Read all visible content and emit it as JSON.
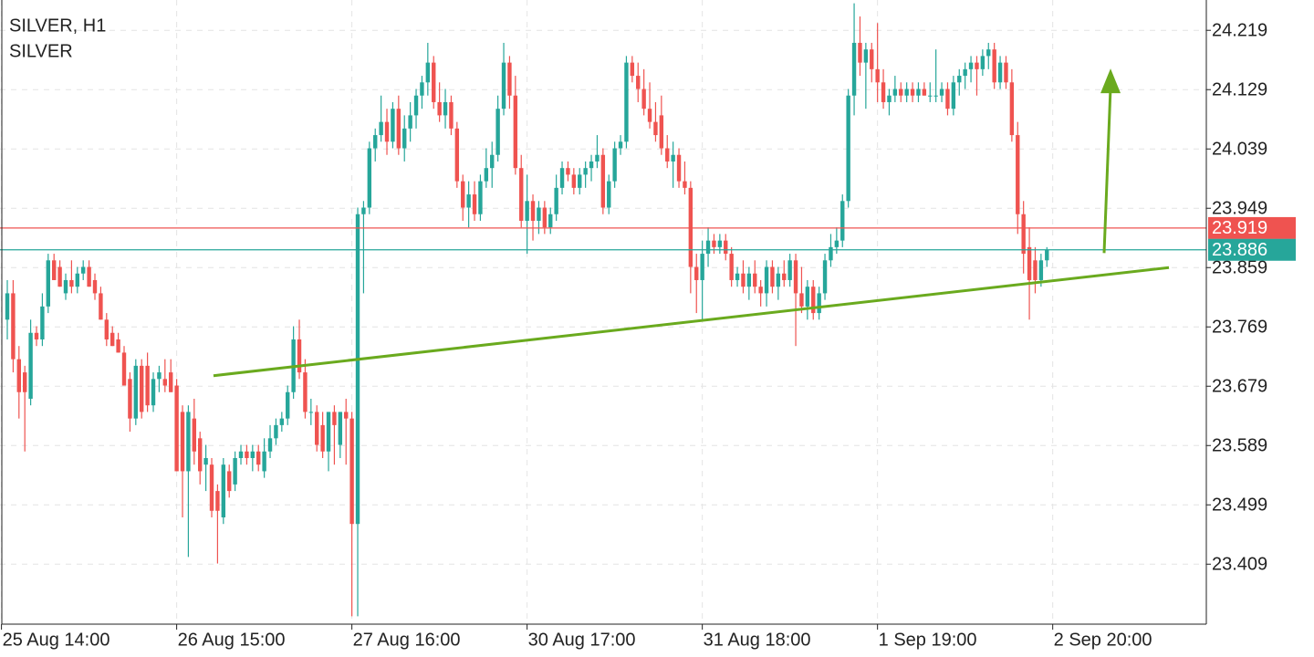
{
  "chart_data": {
    "type": "candlestick",
    "title": "SILVER, H1",
    "subtitle": "SILVER",
    "up_color": "#26a69a",
    "down_color": "#ef5350",
    "grid": true,
    "ylim": [
      23.318,
      24.265
    ],
    "yticks": [
      23.409,
      23.499,
      23.589,
      23.679,
      23.769,
      23.859,
      23.949,
      24.039,
      24.129,
      24.219
    ],
    "xlim": [
      -1.25,
      205.3
    ],
    "xticks": [
      {
        "value": -1,
        "label": "25 Aug 14:00"
      },
      {
        "value": 29,
        "label": "26 Aug 15:00"
      },
      {
        "value": 59,
        "label": "27 Aug 16:00"
      },
      {
        "value": 89,
        "label": "30 Aug 17:00"
      },
      {
        "value": 119,
        "label": "31 Aug 18:00"
      },
      {
        "value": 149,
        "label": "1 Sep 19:00"
      },
      {
        "value": 179,
        "label": "2 Sep 20:00"
      }
    ],
    "price_lines": [
      {
        "value": 23.919,
        "color": "#ef5350"
      },
      {
        "value": 23.886,
        "color": "#26a69a"
      }
    ],
    "trendline": {
      "x": [
        35.3,
        198.9
      ],
      "y": [
        23.695,
        23.859
      ],
      "color": "#6aaa1e"
    },
    "arrow": {
      "x": [
        187.8,
        188.9
      ],
      "y": [
        23.881,
        24.161
      ],
      "color": "#6aaa1e"
    },
    "candles": [
      [
        23.78,
        23.84,
        23.75,
        23.82
      ],
      [
        23.82,
        23.84,
        23.7,
        23.72
      ],
      [
        23.72,
        23.74,
        23.63,
        23.67
      ],
      [
        23.7,
        23.71,
        23.58,
        23.67
      ],
      [
        23.66,
        23.78,
        23.65,
        23.76
      ],
      [
        23.76,
        23.77,
        23.74,
        23.75
      ],
      [
        23.75,
        23.82,
        23.74,
        23.8
      ],
      [
        23.8,
        23.88,
        23.79,
        23.87
      ],
      [
        23.87,
        23.88,
        23.84,
        23.84
      ],
      [
        23.86,
        23.87,
        23.83,
        23.83
      ],
      [
        23.82,
        23.85,
        23.81,
        23.84
      ],
      [
        23.84,
        23.87,
        23.82,
        23.83
      ],
      [
        23.83,
        23.86,
        23.82,
        23.85
      ],
      [
        23.85,
        23.87,
        23.84,
        23.86
      ],
      [
        23.86,
        23.87,
        23.83,
        23.83
      ],
      [
        23.84,
        23.85,
        23.81,
        23.82
      ],
      [
        23.82,
        23.83,
        23.78,
        23.78
      ],
      [
        23.78,
        23.79,
        23.74,
        23.75
      ],
      [
        23.76,
        23.77,
        23.74,
        23.74
      ],
      [
        23.75,
        23.76,
        23.73,
        23.73
      ],
      [
        23.73,
        23.74,
        23.68,
        23.68
      ],
      [
        23.69,
        23.7,
        23.61,
        23.63
      ],
      [
        23.63,
        23.72,
        23.62,
        23.71
      ],
      [
        23.71,
        23.72,
        23.63,
        23.64
      ],
      [
        23.71,
        23.73,
        23.64,
        23.65
      ],
      [
        23.65,
        23.7,
        23.64,
        23.69
      ],
      [
        23.69,
        23.71,
        23.67,
        23.7
      ],
      [
        23.69,
        23.72,
        23.67,
        23.68
      ],
      [
        23.7,
        23.72,
        23.67,
        23.67
      ],
      [
        23.68,
        23.69,
        23.55,
        23.55
      ],
      [
        23.64,
        23.65,
        23.48,
        23.55
      ],
      [
        23.55,
        23.65,
        23.42,
        23.64
      ],
      [
        23.63,
        23.66,
        23.56,
        23.58
      ],
      [
        23.6,
        23.61,
        23.53,
        23.55
      ],
      [
        23.56,
        23.59,
        23.52,
        23.57
      ],
      [
        23.56,
        23.57,
        23.48,
        23.49
      ],
      [
        23.52,
        23.53,
        23.41,
        23.49
      ],
      [
        23.48,
        23.57,
        23.47,
        23.56
      ],
      [
        23.55,
        23.56,
        23.51,
        23.52
      ],
      [
        23.53,
        23.58,
        23.52,
        23.57
      ],
      [
        23.57,
        23.59,
        23.56,
        23.58
      ],
      [
        23.58,
        23.59,
        23.56,
        23.57
      ],
      [
        23.57,
        23.59,
        23.55,
        23.58
      ],
      [
        23.58,
        23.59,
        23.55,
        23.56
      ],
      [
        23.55,
        23.6,
        23.54,
        23.58
      ],
      [
        23.58,
        23.62,
        23.57,
        23.6
      ],
      [
        23.6,
        23.63,
        23.59,
        23.62
      ],
      [
        23.62,
        23.64,
        23.61,
        23.63
      ],
      [
        23.63,
        23.68,
        23.62,
        23.67
      ],
      [
        23.67,
        23.77,
        23.66,
        23.75
      ],
      [
        23.75,
        23.78,
        23.69,
        23.7
      ],
      [
        23.7,
        23.72,
        23.63,
        23.64
      ],
      [
        23.64,
        23.66,
        23.62,
        23.64
      ],
      [
        23.64,
        23.65,
        23.58,
        23.59
      ],
      [
        23.62,
        23.64,
        23.57,
        23.58
      ],
      [
        23.58,
        23.64,
        23.55,
        23.64
      ],
      [
        23.64,
        23.65,
        23.56,
        23.62
      ],
      [
        23.59,
        23.64,
        23.57,
        23.64
      ],
      [
        23.64,
        23.66,
        23.56,
        23.63
      ],
      [
        23.63,
        23.64,
        23.33,
        23.47
      ],
      [
        23.47,
        23.95,
        23.33,
        23.94
      ],
      [
        23.94,
        23.96,
        23.82,
        23.95
      ],
      [
        23.95,
        24.05,
        23.94,
        24.04
      ],
      [
        24.04,
        24.07,
        24.02,
        24.06
      ],
      [
        24.06,
        24.12,
        24.05,
        24.08
      ],
      [
        24.08,
        24.1,
        24.03,
        24.05
      ],
      [
        24.05,
        24.11,
        24.04,
        24.1
      ],
      [
        24.1,
        24.12,
        24.03,
        24.04
      ],
      [
        24.04,
        24.09,
        24.02,
        24.07
      ],
      [
        24.07,
        24.11,
        24.05,
        24.09
      ],
      [
        24.09,
        24.13,
        24.07,
        24.12
      ],
      [
        24.12,
        24.15,
        24.1,
        24.14
      ],
      [
        24.14,
        24.2,
        24.12,
        24.17
      ],
      [
        24.17,
        24.18,
        24.1,
        24.11
      ],
      [
        24.11,
        24.14,
        24.08,
        24.09
      ],
      [
        24.09,
        24.13,
        24.07,
        24.11
      ],
      [
        24.11,
        24.12,
        24.06,
        24.07
      ],
      [
        24.07,
        24.08,
        23.98,
        23.99
      ],
      [
        23.99,
        24.0,
        23.93,
        23.95
      ],
      [
        23.95,
        23.99,
        23.92,
        23.97
      ],
      [
        23.97,
        23.99,
        23.93,
        23.94
      ],
      [
        23.94,
        24.0,
        23.93,
        23.99
      ],
      [
        23.99,
        24.04,
        23.98,
        24.01
      ],
      [
        24.01,
        24.05,
        23.98,
        24.03
      ],
      [
        24.03,
        24.12,
        24.02,
        24.1
      ],
      [
        24.1,
        24.2,
        24.09,
        24.17
      ],
      [
        24.17,
        24.18,
        24.1,
        24.12
      ],
      [
        24.12,
        24.15,
        24.0,
        24.01
      ],
      [
        24.01,
        24.03,
        23.92,
        23.93
      ],
      [
        23.93,
        24.0,
        23.88,
        23.96
      ],
      [
        23.96,
        23.97,
        23.9,
        23.93
      ],
      [
        23.93,
        23.96,
        23.91,
        23.95
      ],
      [
        23.95,
        23.96,
        23.91,
        23.92
      ],
      [
        23.92,
        23.95,
        23.91,
        23.94
      ],
      [
        23.94,
        24.0,
        23.93,
        23.98
      ],
      [
        23.98,
        24.02,
        23.97,
        24.01
      ],
      [
        24.01,
        24.02,
        23.99,
        24.0
      ],
      [
        24.0,
        24.01,
        23.97,
        23.98
      ],
      [
        23.98,
        24.01,
        23.97,
        24.0
      ],
      [
        24.0,
        24.02,
        23.98,
        24.01
      ],
      [
        24.01,
        24.03,
        23.99,
        24.02
      ],
      [
        24.02,
        24.06,
        24.01,
        24.03
      ],
      [
        24.03,
        24.04,
        23.94,
        23.95
      ],
      [
        23.95,
        24.0,
        23.94,
        23.99
      ],
      [
        23.99,
        24.05,
        23.98,
        24.04
      ],
      [
        24.04,
        24.06,
        24.03,
        24.05
      ],
      [
        24.05,
        24.18,
        24.04,
        24.17
      ],
      [
        24.17,
        24.18,
        24.14,
        24.15
      ],
      [
        24.15,
        24.17,
        24.11,
        24.13
      ],
      [
        24.13,
        24.16,
        24.09,
        24.1
      ],
      [
        24.1,
        24.14,
        24.07,
        24.08
      ],
      [
        24.08,
        24.11,
        24.05,
        24.06
      ],
      [
        24.09,
        24.12,
        24.03,
        24.04
      ],
      [
        24.04,
        24.06,
        24.01,
        24.02
      ],
      [
        24.02,
        24.05,
        23.98,
        24.03
      ],
      [
        24.03,
        24.04,
        23.98,
        23.99
      ],
      [
        23.99,
        24.02,
        23.97,
        23.98
      ],
      [
        23.98,
        23.99,
        23.82,
        23.86
      ],
      [
        23.86,
        23.88,
        23.79,
        23.84
      ],
      [
        23.84,
        23.9,
        23.78,
        23.88
      ],
      [
        23.88,
        23.92,
        23.86,
        23.9
      ],
      [
        23.9,
        23.91,
        23.88,
        23.89
      ],
      [
        23.89,
        23.91,
        23.88,
        23.9
      ],
      [
        23.9,
        23.91,
        23.87,
        23.88
      ],
      [
        23.88,
        23.89,
        23.83,
        23.84
      ],
      [
        23.84,
        23.86,
        23.83,
        23.85
      ],
      [
        23.85,
        23.87,
        23.82,
        23.83
      ],
      [
        23.83,
        23.86,
        23.81,
        23.85
      ],
      [
        23.85,
        23.87,
        23.82,
        23.83
      ],
      [
        23.83,
        23.84,
        23.8,
        23.82
      ],
      [
        23.82,
        23.87,
        23.8,
        23.86
      ],
      [
        23.86,
        23.87,
        23.82,
        23.83
      ],
      [
        23.83,
        23.86,
        23.81,
        23.85
      ],
      [
        23.85,
        23.87,
        23.83,
        23.84
      ],
      [
        23.84,
        23.88,
        23.83,
        23.87
      ],
      [
        23.87,
        23.88,
        23.74,
        23.82
      ],
      [
        23.82,
        23.86,
        23.79,
        23.8
      ],
      [
        23.8,
        23.84,
        23.78,
        23.83
      ],
      [
        23.83,
        23.84,
        23.78,
        23.79
      ],
      [
        23.79,
        23.83,
        23.78,
        23.82
      ],
      [
        23.82,
        23.88,
        23.81,
        23.87
      ],
      [
        23.87,
        23.91,
        23.86,
        23.89
      ],
      [
        23.89,
        23.92,
        23.88,
        23.9
      ],
      [
        23.9,
        23.97,
        23.89,
        23.96
      ],
      [
        23.96,
        24.13,
        23.95,
        24.12
      ],
      [
        24.12,
        24.26,
        24.09,
        24.2
      ],
      [
        24.2,
        24.24,
        24.15,
        24.17
      ],
      [
        24.17,
        24.2,
        24.1,
        24.19
      ],
      [
        24.19,
        24.2,
        24.14,
        24.16
      ],
      [
        24.16,
        24.23,
        24.11,
        24.14
      ],
      [
        24.14,
        24.16,
        24.1,
        24.11
      ],
      [
        24.11,
        24.13,
        24.09,
        24.12
      ],
      [
        24.12,
        24.15,
        24.11,
        24.13
      ],
      [
        24.13,
        24.14,
        24.11,
        24.12
      ],
      [
        24.12,
        24.14,
        24.11,
        24.13
      ],
      [
        24.13,
        24.14,
        24.11,
        24.12
      ],
      [
        24.12,
        24.14,
        24.11,
        24.13
      ],
      [
        24.13,
        24.14,
        24.12,
        24.12
      ],
      [
        24.12,
        24.14,
        24.11,
        24.12
      ],
      [
        24.12,
        24.19,
        24.11,
        24.12
      ],
      [
        24.12,
        24.14,
        24.11,
        24.13
      ],
      [
        24.13,
        24.14,
        24.09,
        24.1
      ],
      [
        24.1,
        24.15,
        24.09,
        24.14
      ],
      [
        24.14,
        24.16,
        24.12,
        24.15
      ],
      [
        24.15,
        24.17,
        24.13,
        24.16
      ],
      [
        24.16,
        24.18,
        24.14,
        24.17
      ],
      [
        24.17,
        24.18,
        24.12,
        24.16
      ],
      [
        24.16,
        24.19,
        24.15,
        24.18
      ],
      [
        24.18,
        24.2,
        24.16,
        24.19
      ],
      [
        24.19,
        24.2,
        24.13,
        24.14
      ],
      [
        24.14,
        24.18,
        24.13,
        24.17
      ],
      [
        24.17,
        24.18,
        24.13,
        24.14
      ],
      [
        24.14,
        24.16,
        24.05,
        24.06
      ],
      [
        24.06,
        24.08,
        23.91,
        23.94
      ],
      [
        23.94,
        23.96,
        23.85,
        23.88
      ],
      [
        23.89,
        23.92,
        23.78,
        23.84
      ],
      [
        23.87,
        23.89,
        23.82,
        23.84
      ],
      [
        23.84,
        23.88,
        23.83,
        23.87
      ],
      [
        23.87,
        23.89,
        23.86,
        23.886
      ]
    ]
  }
}
